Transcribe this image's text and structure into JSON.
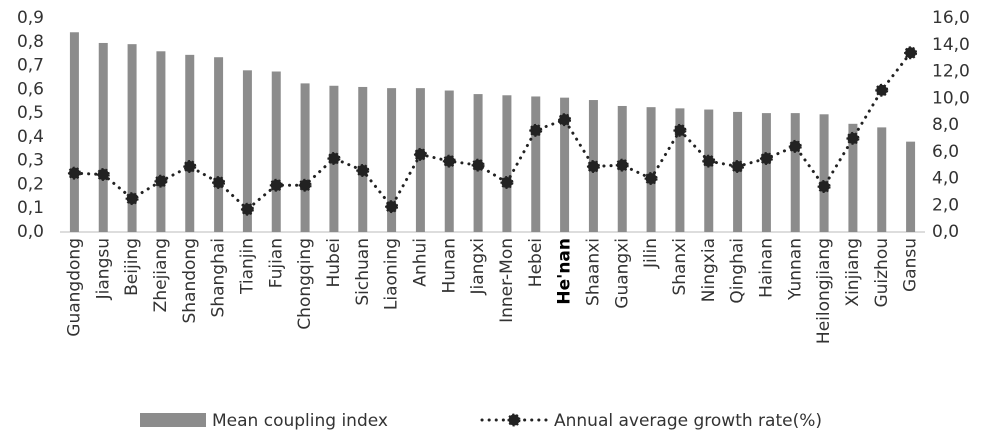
{
  "chart_data": {
    "type": "bar-line",
    "categories": [
      "Guangdong",
      "Jiangsu",
      "Beijing",
      "Zhejiang",
      "Shandong",
      "Shanghai",
      "Tianjin",
      "Fujian",
      "Chongqing",
      "Hubei",
      "Sichuan",
      "Liaoning",
      "Anhui",
      "Hunan",
      "Jiangxi",
      "Inner-Mon",
      "Hebei",
      "He'nan",
      "Shaanxi",
      "Guangxi",
      "Jilin",
      "Shanxi",
      "Ningxia",
      "Qinghai",
      "Hainan",
      "Yunnan",
      "Heilongjiang",
      "Xinjiang",
      "Guizhou",
      "Gansu"
    ],
    "series": [
      {
        "name": "Mean coupling index",
        "type": "bar",
        "color": "#8c8c8c",
        "values": [
          0.84,
          0.795,
          0.79,
          0.76,
          0.745,
          0.735,
          0.68,
          0.675,
          0.625,
          0.615,
          0.61,
          0.605,
          0.605,
          0.595,
          0.58,
          0.575,
          0.57,
          0.565,
          0.555,
          0.53,
          0.525,
          0.52,
          0.515,
          0.505,
          0.5,
          0.5,
          0.495,
          0.455,
          0.44,
          0.38
        ]
      },
      {
        "name": "Annual average growth rate(%)",
        "type": "line",
        "axis": "y2",
        "color": "#222222",
        "values": [
          4.4,
          4.3,
          2.5,
          3.8,
          4.9,
          3.7,
          1.7,
          3.5,
          3.5,
          5.5,
          4.6,
          1.9,
          5.8,
          5.3,
          5.0,
          3.7,
          7.6,
          8.4,
          4.9,
          5.0,
          4.0,
          7.6,
          5.3,
          4.9,
          5.5,
          6.4,
          3.4,
          7.0,
          10.6,
          13.4
        ]
      }
    ],
    "ylim": [
      0,
      0.9
    ],
    "yticks": [
      {
        "value": 0,
        "label": "0,0"
      },
      {
        "value": 0.1,
        "label": "0,1"
      },
      {
        "value": 0.2,
        "label": "0,2"
      },
      {
        "value": 0.3,
        "label": "0,3"
      },
      {
        "value": 0.4,
        "label": "0,4"
      },
      {
        "value": 0.5,
        "label": "0,5"
      },
      {
        "value": 0.6,
        "label": "0,6"
      },
      {
        "value": 0.7,
        "label": "0,7"
      },
      {
        "value": 0.8,
        "label": "0,8"
      },
      {
        "value": 0.9,
        "label": "0,9"
      }
    ],
    "y2lim": [
      0,
      16
    ],
    "y2ticks": [
      {
        "value": 0,
        "label": "0,0"
      },
      {
        "value": 2,
        "label": "2,0"
      },
      {
        "value": 4,
        "label": "4,0"
      },
      {
        "value": 6,
        "label": "6,0"
      },
      {
        "value": 8,
        "label": "8,0"
      },
      {
        "value": 10,
        "label": "10,0"
      },
      {
        "value": 12,
        "label": "12,0"
      },
      {
        "value": 14,
        "label": "14,0"
      },
      {
        "value": 16,
        "label": "16,0"
      }
    ]
  }
}
